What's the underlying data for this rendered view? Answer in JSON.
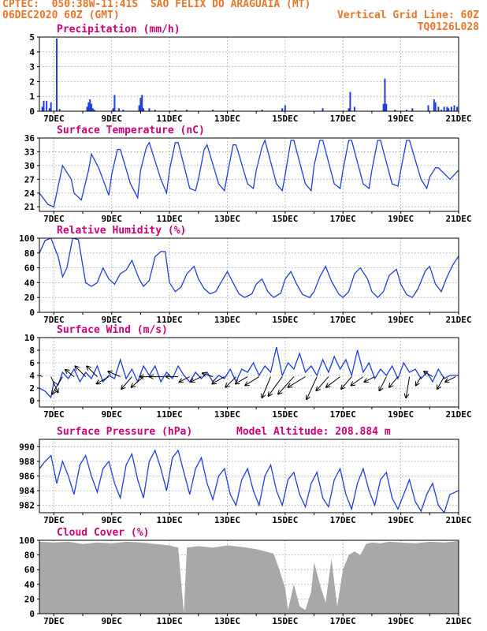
{
  "header": {
    "line1_left": "CPTEC:  050:38W-11:41S  SAO FELIX DO ARAGUAIA (MT)",
    "line2_left": "06DEC2020 60Z (GMT)",
    "line2_right": "Vertical Grid Line: 60Z",
    "line3_right": "TQ0126L028"
  },
  "colors": {
    "header": "#e8762a",
    "title": "#cc0077",
    "series": "#1f3fdc",
    "cloud": "#a8a8a8",
    "arrow": "#000000"
  },
  "x_axis": {
    "start_day": 6,
    "start_hour": 12,
    "end_day": 21,
    "tick_labels": [
      "7DEC",
      "9DEC",
      "11DEC",
      "13DEC",
      "15DEC",
      "17DEC",
      "19DEC",
      "21DEC"
    ],
    "tick_days": [
      7,
      9,
      11,
      13,
      15,
      17,
      19,
      21
    ]
  },
  "chart_data": [
    {
      "type": "bar",
      "title": "Precipitation (mm/h)",
      "ylim": [
        0,
        5
      ],
      "yticks": [
        0,
        1,
        2,
        3,
        4,
        5
      ],
      "x_days": [
        6.6,
        6.65,
        6.75,
        6.85,
        6.9,
        7.1,
        7.2,
        8.15,
        8.2,
        8.25,
        8.3,
        8.35,
        8.4,
        9.05,
        9.1,
        9.25,
        9.4,
        9.95,
        10.0,
        10.05,
        10.1,
        10.3,
        10.5,
        11.2,
        11.6,
        12.5,
        13.2,
        14.2,
        14.9,
        15.0,
        16.3,
        17.2,
        17.25,
        17.4,
        18.4,
        18.45,
        18.5,
        18.8,
        19.2,
        19.4,
        19.95,
        20.15,
        20.2,
        20.3,
        20.4,
        20.5,
        20.6,
        20.65,
        20.75,
        20.85,
        20.95
      ],
      "values": [
        0.3,
        0.7,
        0.7,
        0.2,
        0.6,
        4.9,
        0.15,
        0.3,
        0.6,
        0.8,
        0.5,
        0.2,
        0.1,
        0.2,
        1.1,
        0.2,
        0.1,
        0.4,
        0.9,
        1.1,
        0.2,
        0.2,
        0.1,
        0.1,
        0.1,
        0.1,
        0.1,
        0.1,
        0.2,
        0.4,
        0.2,
        0.2,
        1.3,
        0.3,
        0.5,
        2.2,
        0.5,
        0.1,
        0.1,
        0.2,
        0.4,
        0.8,
        0.6,
        0.3,
        0.1,
        0.3,
        0.3,
        0.2,
        0.3,
        0.4,
        0.3
      ]
    },
    {
      "type": "line",
      "title": "Surface Temperature (nC)",
      "ylim": [
        20,
        36
      ],
      "yticks": [
        21,
        24,
        27,
        30,
        33,
        36
      ],
      "x_days": [
        6.5,
        6.8,
        7.0,
        7.2,
        7.3,
        7.6,
        7.7,
        7.95,
        8.2,
        8.3,
        8.55,
        8.9,
        9.0,
        9.2,
        9.3,
        9.65,
        9.9,
        10.0,
        10.2,
        10.3,
        10.7,
        10.9,
        11.0,
        11.2,
        11.3,
        11.7,
        11.9,
        12.0,
        12.2,
        12.3,
        12.7,
        12.9,
        13.0,
        13.2,
        13.3,
        13.7,
        13.9,
        14.0,
        14.2,
        14.3,
        14.7,
        14.9,
        15.0,
        15.2,
        15.3,
        15.7,
        15.9,
        16.0,
        16.2,
        16.3,
        16.7,
        16.9,
        17.0,
        17.2,
        17.3,
        17.7,
        17.9,
        18.0,
        18.2,
        18.3,
        18.7,
        18.9,
        19.0,
        19.2,
        19.3,
        19.7,
        19.9,
        20.0,
        20.2,
        20.3,
        20.7,
        21.0
      ],
      "values": [
        24.0,
        21.5,
        21.0,
        27.0,
        30.0,
        27.0,
        24.0,
        22.5,
        29.0,
        32.5,
        29.5,
        23.5,
        28.0,
        33.5,
        33.5,
        26.0,
        23.0,
        29.0,
        34.0,
        35.0,
        27.0,
        24.0,
        29.0,
        35.0,
        35.0,
        25.0,
        24.5,
        27.0,
        33.5,
        34.5,
        26.0,
        24.5,
        28.0,
        34.5,
        34.5,
        26.0,
        25.0,
        29.0,
        34.0,
        35.5,
        26.0,
        24.5,
        28.0,
        35.5,
        35.5,
        26.0,
        24.5,
        30.0,
        35.5,
        35.5,
        26.0,
        25.0,
        29.0,
        35.5,
        35.5,
        26.0,
        25.0,
        29.0,
        35.5,
        35.5,
        26.0,
        25.5,
        29.0,
        35.5,
        35.5,
        27.0,
        25.0,
        27.5,
        29.5,
        29.5,
        27.0,
        29.0
      ]
    },
    {
      "type": "line",
      "title": "Relative Humidity (%)",
      "ylim": [
        0,
        100
      ],
      "yticks": [
        0,
        20,
        40,
        60,
        80,
        100
      ],
      "x_days": [
        6.5,
        6.7,
        6.9,
        7.15,
        7.3,
        7.45,
        7.65,
        7.85,
        8.1,
        8.3,
        8.5,
        8.7,
        8.9,
        9.1,
        9.3,
        9.5,
        9.7,
        9.95,
        10.1,
        10.3,
        10.5,
        10.7,
        10.85,
        11.0,
        11.2,
        11.4,
        11.6,
        11.85,
        12.0,
        12.2,
        12.4,
        12.6,
        12.85,
        13.0,
        13.2,
        13.4,
        13.6,
        13.85,
        14.0,
        14.2,
        14.4,
        14.6,
        14.85,
        15.0,
        15.2,
        15.4,
        15.6,
        15.85,
        16.0,
        16.2,
        16.4,
        16.6,
        16.85,
        17.0,
        17.2,
        17.4,
        17.6,
        17.85,
        18.0,
        18.2,
        18.4,
        18.6,
        18.85,
        19.0,
        19.2,
        19.4,
        19.6,
        19.85,
        20.0,
        20.2,
        20.4,
        20.6,
        20.8,
        21.0
      ],
      "values": [
        80,
        97,
        100,
        75,
        48,
        60,
        100,
        98,
        40,
        35,
        40,
        60,
        45,
        38,
        52,
        57,
        70,
        45,
        35,
        43,
        75,
        82,
        82,
        40,
        28,
        34,
        52,
        62,
        45,
        32,
        25,
        28,
        45,
        55,
        40,
        25,
        20,
        25,
        38,
        45,
        28,
        20,
        26,
        45,
        55,
        38,
        24,
        20,
        28,
        48,
        62,
        42,
        25,
        20,
        28,
        52,
        60,
        45,
        28,
        20,
        28,
        50,
        58,
        38,
        24,
        20,
        32,
        56,
        62,
        38,
        28,
        48,
        64,
        76
      ]
    },
    {
      "type": "line",
      "title": "Surface Wind (m/s)",
      "ylim": [
        -1,
        10
      ],
      "yticks": [
        0,
        2,
        4,
        6,
        8,
        10
      ],
      "x_days": [
        6.5,
        6.7,
        6.9,
        7.0,
        7.15,
        7.3,
        7.5,
        7.7,
        7.9,
        8.1,
        8.3,
        8.5,
        8.7,
        8.9,
        9.1,
        9.3,
        9.5,
        9.7,
        9.9,
        10.1,
        10.3,
        10.5,
        10.7,
        10.9,
        11.1,
        11.3,
        11.5,
        11.7,
        11.9,
        12.1,
        12.3,
        12.5,
        12.7,
        12.9,
        13.1,
        13.3,
        13.5,
        13.7,
        13.9,
        14.1,
        14.3,
        14.5,
        14.7,
        14.9,
        15.1,
        15.3,
        15.5,
        15.7,
        15.9,
        16.1,
        16.3,
        16.5,
        16.7,
        16.9,
        17.1,
        17.3,
        17.5,
        17.7,
        17.9,
        18.1,
        18.3,
        18.5,
        18.7,
        18.9,
        19.1,
        19.3,
        19.5,
        19.7,
        19.9,
        20.1,
        20.3,
        20.5,
        20.7,
        21.0
      ],
      "values": [
        2.0,
        1.5,
        0.5,
        3.0,
        2.5,
        4.5,
        3.5,
        5.0,
        3.0,
        4.5,
        3.5,
        5.5,
        3.0,
        4.0,
        3.5,
        6.5,
        3.5,
        5.0,
        3.0,
        5.5,
        4.0,
        5.5,
        3.0,
        4.5,
        3.5,
        5.5,
        4.0,
        3.0,
        4.5,
        3.5,
        4.5,
        3.0,
        4.0,
        3.5,
        5.0,
        3.0,
        5.0,
        4.5,
        6.0,
        4.0,
        5.5,
        4.5,
        8.5,
        4.0,
        6.0,
        5.0,
        7.5,
        4.5,
        5.5,
        4.0,
        6.5,
        4.5,
        7.0,
        5.0,
        6.5,
        4.0,
        8.0,
        4.5,
        6.0,
        3.5,
        5.0,
        4.0,
        5.5,
        3.5,
        6.0,
        4.5,
        5.0,
        3.5,
        4.5,
        3.0,
        5.0,
        3.5,
        4.0,
        4.0
      ],
      "vectors": [
        {
          "day": 6.6,
          "u": -0.5,
          "v": 0.3
        },
        {
          "day": 6.9,
          "u": 0.4,
          "v": -0.9
        },
        {
          "day": 7.3,
          "u": -0.6,
          "v": -1.0
        },
        {
          "day": 7.7,
          "u": -0.5,
          "v": 0.4
        },
        {
          "day": 8.1,
          "u": -0.6,
          "v": 0.6
        },
        {
          "day": 8.5,
          "u": -0.6,
          "v": 0.6
        },
        {
          "day": 8.9,
          "u": -0.7,
          "v": -0.4
        },
        {
          "day": 9.3,
          "u": -0.7,
          "v": 0.3
        },
        {
          "day": 9.7,
          "u": -0.6,
          "v": -0.7
        },
        {
          "day": 10.1,
          "u": -0.7,
          "v": -0.6
        },
        {
          "day": 10.4,
          "u": -0.7,
          "v": 0.0
        },
        {
          "day": 10.8,
          "u": -0.8,
          "v": 0.0
        },
        {
          "day": 11.3,
          "u": -0.7,
          "v": 0.0
        },
        {
          "day": 11.7,
          "u": -0.6,
          "v": -0.3
        },
        {
          "day": 12.1,
          "u": -0.6,
          "v": -0.3
        },
        {
          "day": 12.5,
          "u": -0.6,
          "v": 0.2
        },
        {
          "day": 12.9,
          "u": -0.7,
          "v": -0.4
        },
        {
          "day": 13.3,
          "u": -0.6,
          "v": -0.6
        },
        {
          "day": 13.7,
          "u": -0.7,
          "v": -0.4
        },
        {
          "day": 14.1,
          "u": -0.8,
          "v": -0.5
        },
        {
          "day": 14.5,
          "u": -0.5,
          "v": -1.2
        },
        {
          "day": 14.9,
          "u": -0.8,
          "v": -1.1
        },
        {
          "day": 15.3,
          "u": -0.9,
          "v": -1.0
        },
        {
          "day": 15.7,
          "u": -1.0,
          "v": -0.6
        },
        {
          "day": 16.1,
          "u": -0.6,
          "v": -1.3
        },
        {
          "day": 16.5,
          "u": -0.7,
          "v": -0.8
        },
        {
          "day": 16.9,
          "u": -0.8,
          "v": -0.6
        },
        {
          "day": 17.3,
          "u": -0.6,
          "v": -0.7
        },
        {
          "day": 17.7,
          "u": -0.7,
          "v": -0.5
        },
        {
          "day": 18.1,
          "u": -0.6,
          "v": -0.3
        },
        {
          "day": 18.5,
          "u": -0.4,
          "v": -0.8
        },
        {
          "day": 18.9,
          "u": -0.5,
          "v": -0.6
        },
        {
          "day": 19.3,
          "u": -0.2,
          "v": -1.2
        },
        {
          "day": 19.7,
          "u": -0.3,
          "v": -0.5
        },
        {
          "day": 20.1,
          "u": -0.5,
          "v": 0.3
        },
        {
          "day": 20.5,
          "u": -0.4,
          "v": -0.7
        },
        {
          "day": 20.9,
          "u": -0.6,
          "v": -0.3
        }
      ]
    },
    {
      "type": "line",
      "title": "Surface Pressure (hPa)",
      "annotation": "Model Altitude: 208.884 m",
      "ylim": [
        981,
        991
      ],
      "yticks": [
        982,
        984,
        986,
        988,
        990
      ],
      "x_days": [
        6.5,
        6.7,
        6.9,
        7.1,
        7.3,
        7.5,
        7.7,
        7.9,
        8.1,
        8.3,
        8.5,
        8.7,
        8.9,
        9.1,
        9.3,
        9.5,
        9.7,
        9.9,
        10.1,
        10.3,
        10.5,
        10.7,
        10.9,
        11.1,
        11.3,
        11.5,
        11.7,
        11.9,
        12.1,
        12.3,
        12.5,
        12.7,
        12.9,
        13.1,
        13.3,
        13.5,
        13.7,
        13.9,
        14.1,
        14.3,
        14.5,
        14.7,
        14.9,
        15.1,
        15.3,
        15.5,
        15.7,
        15.9,
        16.1,
        16.3,
        16.5,
        16.7,
        16.9,
        17.1,
        17.3,
        17.5,
        17.7,
        17.9,
        18.1,
        18.3,
        18.5,
        18.7,
        18.9,
        19.1,
        19.3,
        19.5,
        19.7,
        19.9,
        20.1,
        20.3,
        20.5,
        20.7,
        21.0
      ],
      "values": [
        987.0,
        988.0,
        988.8,
        985.0,
        988.0,
        986.0,
        983.5,
        987.5,
        988.8,
        986.0,
        983.8,
        987.0,
        988.0,
        985.0,
        983.0,
        987.5,
        989.0,
        985.5,
        983.0,
        988.0,
        989.5,
        987.0,
        984.0,
        988.5,
        989.5,
        986.5,
        983.5,
        987.0,
        988.5,
        985.0,
        982.8,
        986.0,
        987.0,
        983.5,
        982.0,
        985.5,
        987.0,
        984.0,
        982.0,
        986.0,
        987.5,
        984.0,
        982.0,
        985.5,
        986.5,
        983.5,
        981.8,
        985.0,
        986.5,
        983.0,
        981.8,
        985.5,
        987.0,
        983.5,
        981.5,
        985.0,
        987.0,
        984.0,
        982.0,
        985.5,
        986.5,
        983.0,
        981.5,
        983.5,
        985.5,
        982.5,
        981.2,
        983.5,
        985.0,
        982.0,
        981.0,
        983.5,
        984.0
      ]
    },
    {
      "type": "area",
      "title": "Cloud Cover (%)",
      "ylim": [
        0,
        100
      ],
      "yticks": [
        0,
        20,
        40,
        60,
        80,
        100
      ],
      "x_days": [
        6.5,
        7.0,
        7.5,
        8.0,
        8.5,
        9.0,
        9.5,
        10.0,
        10.5,
        11.0,
        11.3,
        11.5,
        11.6,
        12.0,
        12.5,
        13.0,
        13.5,
        14.0,
        14.3,
        14.6,
        14.8,
        15.0,
        15.1,
        15.3,
        15.5,
        15.7,
        15.9,
        16.0,
        16.2,
        16.4,
        16.6,
        16.8,
        17.0,
        17.2,
        17.4,
        17.6,
        17.8,
        18.0,
        18.3,
        18.6,
        19.0,
        19.5,
        20.0,
        20.5,
        21.0
      ],
      "values": [
        98,
        97,
        98,
        95,
        97,
        96,
        98,
        97,
        95,
        93,
        90,
        0,
        90,
        92,
        90,
        93,
        91,
        88,
        85,
        82,
        60,
        35,
        5,
        40,
        10,
        5,
        30,
        70,
        40,
        15,
        75,
        10,
        60,
        80,
        85,
        80,
        95,
        97,
        96,
        98,
        97,
        96,
        98,
        97,
        99
      ]
    }
  ]
}
